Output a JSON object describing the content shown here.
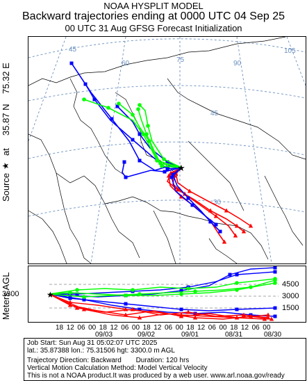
{
  "title": {
    "line1": "NOAA HYSPLIT MODEL",
    "line2": "Backward trajectories ending at 0000 UTC 04 Sep 25",
    "line3": "00 UTC 31 Aug    GFSG  Forecast Initialization"
  },
  "source_label": {
    "text1": "Source",
    "text2": "at",
    "lat": "35.87 N",
    "lon": "75.32 E",
    "star": "★"
  },
  "map": {
    "lon_labels": [
      "45",
      "60",
      "75",
      "90",
      "105"
    ],
    "lat_labels": [
      "45",
      "30"
    ],
    "colors": {
      "red": "#ff0000",
      "blue": "#0000ff",
      "green": "#00ff00",
      "grid": "#6a8fbf",
      "coast": "#000000"
    },
    "icons": {
      "source": "star",
      "red_marker": "triangle",
      "blue_marker": "square",
      "green_marker": "circle"
    }
  },
  "height_panel": {
    "ylabel": "Meters AGL",
    "source_height": "3300",
    "right_ticks": [
      "4500",
      "3000",
      "1500"
    ],
    "time_ticks": [
      "18",
      "12",
      "06",
      "00",
      "18",
      "12",
      "06",
      "00",
      "18",
      "12",
      "06",
      "00",
      "18",
      "12",
      "06",
      "00",
      "18",
      "12",
      "06",
      "00"
    ],
    "date_labels": [
      "09/03",
      "09/02",
      "09/01",
      "08/31",
      "08/30"
    ]
  },
  "footer": {
    "job": "Job Start: Sun Aug 31 05:02:07 UTC 2025",
    "location": "lat.: 35.87388   lon.: 75.31506   hgt: 3300.0 m AGL",
    "direction": "Trajectory Direction: Backward",
    "duration": "Duration: 120 hrs",
    "vertical": "Vertical Motion Calculation Method: Model Vertical Velocity",
    "disclaimer": "This is not a NOAA product.It was produced by a web user. www.arl.noaa.gov/ready"
  }
}
